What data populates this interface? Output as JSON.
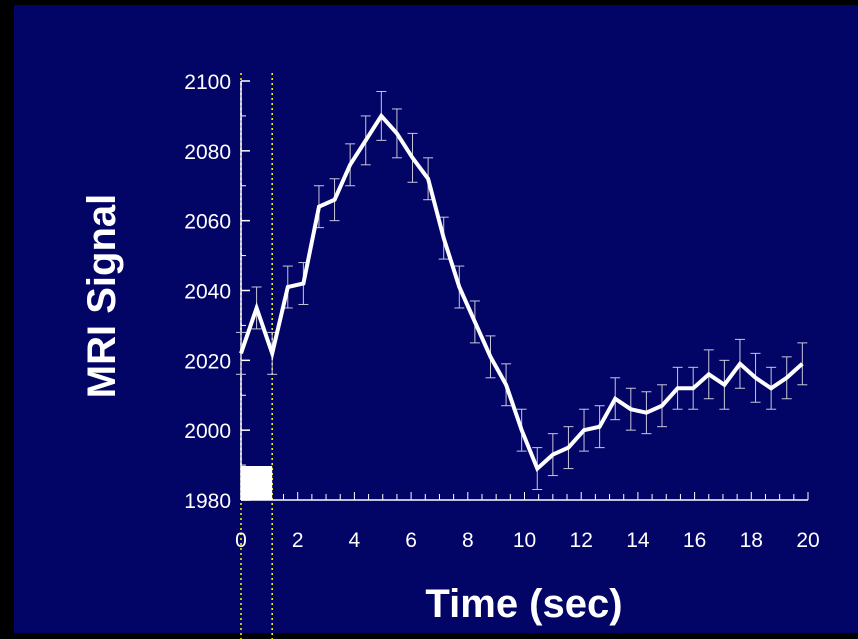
{
  "colors": {
    "background": "#020466",
    "outer": "#000000",
    "series": "#ffffff",
    "marker_lines": "#ffff00"
  },
  "chart_data": {
    "type": "line",
    "title": "",
    "xlabel": "Time (sec)",
    "ylabel": "MRI Signal",
    "xlim": [
      0,
      20
    ],
    "ylim": [
      1980,
      2100
    ],
    "x_ticks": [
      "0",
      "2",
      "4",
      "6",
      "8",
      "10",
      "12",
      "14",
      "16",
      "18",
      "20"
    ],
    "y_ticks": [
      "1980",
      "2000",
      "2020",
      "2040",
      "2060",
      "2080",
      "2100"
    ],
    "grid": false,
    "legend": "none",
    "stimulus": {
      "start": 0,
      "end": 1.1
    },
    "vertical_markers": [
      0,
      1.1
    ],
    "series": [
      {
        "x": [
          0,
          0.55,
          1.1,
          1.65,
          2.2,
          2.75,
          3.3,
          3.85,
          4.4,
          4.95,
          5.5,
          6.05,
          6.6,
          7.15,
          7.7,
          8.25,
          8.8,
          9.35,
          9.9,
          10.45,
          11,
          11.55,
          12.1,
          12.65,
          13.2,
          13.75,
          14.3,
          14.85,
          15.4,
          15.95,
          16.5,
          17.05,
          17.6,
          18.15,
          18.7,
          19.25,
          19.8
        ],
        "y": [
          2022,
          2035,
          2022,
          2041,
          2042,
          2064,
          2066,
          2076,
          2083,
          2090,
          2085,
          2078,
          2072,
          2055,
          2041,
          2031,
          2021,
          2013,
          2000,
          1989,
          1993,
          1995,
          2000,
          2001,
          2009,
          2006,
          2005,
          2007,
          2012,
          2012,
          2016,
          2013,
          2019,
          2015,
          2012,
          2015,
          2019
        ],
        "error": [
          6,
          6,
          6,
          6,
          6,
          6,
          6,
          6,
          7,
          7,
          7,
          7,
          6,
          6,
          6,
          6,
          6,
          6,
          6,
          6,
          6,
          6,
          6,
          6,
          6,
          6,
          6,
          6,
          6,
          6,
          7,
          7,
          7,
          7,
          6,
          6,
          6
        ]
      }
    ]
  }
}
